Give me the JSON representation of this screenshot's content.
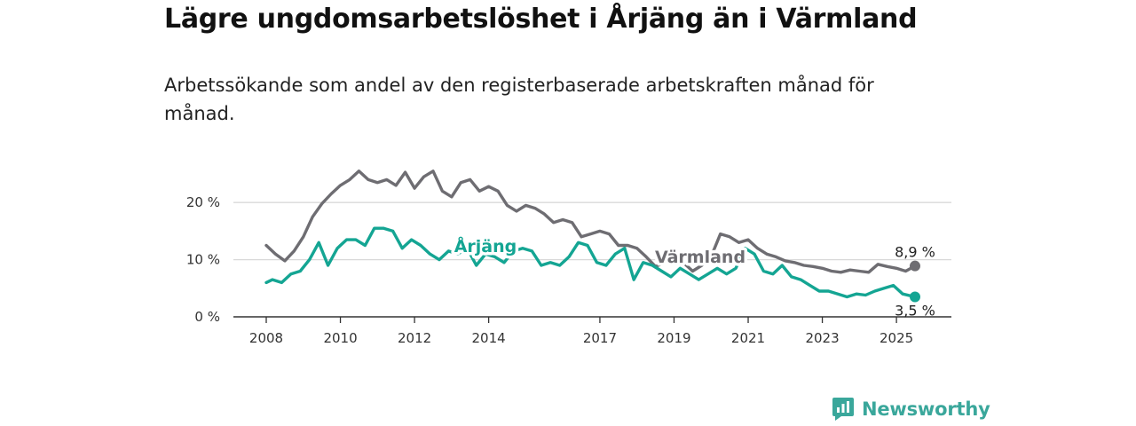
{
  "title": "Lägre ungdomsarbetslöshet i Årjäng än i Värmland",
  "subtitle": "Arbetssökande som andel av den registerbaserade arbetskraften månad för månad.",
  "brand": {
    "name": "Newsworthy",
    "icon": "newsworthy-logo-icon",
    "color": "#3aa79b"
  },
  "chart_data": {
    "type": "line",
    "x_ticks": [
      "2008",
      "2010",
      "2012",
      "2014",
      "2017",
      "2019",
      "2021",
      "2023",
      "2025"
    ],
    "y_ticks": [
      "0 %",
      "10 %",
      "20 %"
    ],
    "y_tick_values": [
      0,
      10,
      20
    ],
    "ylim": [
      0,
      25
    ],
    "grid": true,
    "series": [
      {
        "name": "Värmland",
        "color": "#6e6d72",
        "end_label": "8,9 %",
        "points": [
          [
            "2008-01",
            12.5
          ],
          [
            "2008-04",
            11.0
          ],
          [
            "2008-07",
            9.8
          ],
          [
            "2008-10",
            11.5
          ],
          [
            "2009-01",
            14.0
          ],
          [
            "2009-04",
            17.5
          ],
          [
            "2009-07",
            19.8
          ],
          [
            "2009-10",
            21.5
          ],
          [
            "2010-01",
            23.0
          ],
          [
            "2010-04",
            24.0
          ],
          [
            "2010-07",
            25.5
          ],
          [
            "2010-10",
            24.0
          ],
          [
            "2011-01",
            23.5
          ],
          [
            "2011-04",
            24.0
          ],
          [
            "2011-07",
            23.0
          ],
          [
            "2011-10",
            25.3
          ],
          [
            "2012-01",
            22.5
          ],
          [
            "2012-04",
            24.5
          ],
          [
            "2012-07",
            25.5
          ],
          [
            "2012-10",
            22.0
          ],
          [
            "2013-01",
            21.0
          ],
          [
            "2013-04",
            23.5
          ],
          [
            "2013-07",
            24.0
          ],
          [
            "2013-10",
            22.0
          ],
          [
            "2014-01",
            22.8
          ],
          [
            "2014-04",
            22.0
          ],
          [
            "2014-07",
            19.5
          ],
          [
            "2014-10",
            18.5
          ],
          [
            "2015-01",
            19.5
          ],
          [
            "2015-04",
            19.0
          ],
          [
            "2015-07",
            18.0
          ],
          [
            "2015-10",
            16.5
          ],
          [
            "2016-01",
            17.0
          ],
          [
            "2016-04",
            16.5
          ],
          [
            "2016-07",
            14.0
          ],
          [
            "2016-10",
            14.5
          ],
          [
            "2017-01",
            15.0
          ],
          [
            "2017-04",
            14.5
          ],
          [
            "2017-07",
            12.5
          ],
          [
            "2017-10",
            12.5
          ],
          [
            "2018-01",
            12.0
          ],
          [
            "2018-04",
            10.5
          ],
          [
            "2018-07",
            8.8
          ],
          [
            "2018-10",
            9.5
          ],
          [
            "2019-01",
            10.0
          ],
          [
            "2019-04",
            9.5
          ],
          [
            "2019-07",
            8.0
          ],
          [
            "2019-10",
            9.0
          ],
          [
            "2020-01",
            10.5
          ],
          [
            "2020-04",
            14.5
          ],
          [
            "2020-07",
            14.0
          ],
          [
            "2020-10",
            13.0
          ],
          [
            "2021-01",
            13.5
          ],
          [
            "2021-04",
            12.0
          ],
          [
            "2021-07",
            11.0
          ],
          [
            "2021-10",
            10.5
          ],
          [
            "2022-01",
            9.8
          ],
          [
            "2022-04",
            9.5
          ],
          [
            "2022-07",
            9.0
          ],
          [
            "2022-10",
            8.8
          ],
          [
            "2023-01",
            8.5
          ],
          [
            "2023-04",
            8.0
          ],
          [
            "2023-07",
            7.8
          ],
          [
            "2023-10",
            8.2
          ],
          [
            "2024-01",
            8.0
          ],
          [
            "2024-04",
            7.8
          ],
          [
            "2024-07",
            9.2
          ],
          [
            "2024-10",
            8.8
          ],
          [
            "2025-01",
            8.5
          ],
          [
            "2025-04",
            8.0
          ],
          [
            "2025-07",
            8.9
          ]
        ]
      },
      {
        "name": "Årjäng",
        "color": "#14a593",
        "end_label": "3,5 %",
        "points": [
          [
            "2008-01",
            6.0
          ],
          [
            "2008-03",
            6.5
          ],
          [
            "2008-06",
            6.0
          ],
          [
            "2008-09",
            7.5
          ],
          [
            "2008-12",
            8.0
          ],
          [
            "2009-03",
            10.0
          ],
          [
            "2009-06",
            13.0
          ],
          [
            "2009-09",
            9.0
          ],
          [
            "2009-12",
            12.0
          ],
          [
            "2010-03",
            13.5
          ],
          [
            "2010-06",
            13.5
          ],
          [
            "2010-09",
            12.5
          ],
          [
            "2010-12",
            15.5
          ],
          [
            "2011-03",
            15.5
          ],
          [
            "2011-06",
            15.0
          ],
          [
            "2011-09",
            12.0
          ],
          [
            "2011-12",
            13.5
          ],
          [
            "2012-03",
            12.5
          ],
          [
            "2012-06",
            11.0
          ],
          [
            "2012-09",
            10.0
          ],
          [
            "2012-12",
            11.5
          ],
          [
            "2013-03",
            11.0
          ],
          [
            "2013-06",
            12.0
          ],
          [
            "2013-09",
            9.0
          ],
          [
            "2013-12",
            11.0
          ],
          [
            "2014-03",
            10.5
          ],
          [
            "2014-06",
            9.5
          ],
          [
            "2014-09",
            11.5
          ],
          [
            "2014-12",
            12.0
          ],
          [
            "2015-03",
            11.5
          ],
          [
            "2015-06",
            9.0
          ],
          [
            "2015-09",
            9.5
          ],
          [
            "2015-12",
            9.0
          ],
          [
            "2016-03",
            10.5
          ],
          [
            "2016-06",
            13.0
          ],
          [
            "2016-09",
            12.5
          ],
          [
            "2016-12",
            9.5
          ],
          [
            "2017-03",
            9.0
          ],
          [
            "2017-06",
            11.0
          ],
          [
            "2017-09",
            12.0
          ],
          [
            "2017-12",
            6.5
          ],
          [
            "2018-03",
            9.5
          ],
          [
            "2018-06",
            9.0
          ],
          [
            "2018-09",
            8.0
          ],
          [
            "2018-12",
            7.0
          ],
          [
            "2019-03",
            8.5
          ],
          [
            "2019-06",
            7.5
          ],
          [
            "2019-09",
            6.5
          ],
          [
            "2019-12",
            7.5
          ],
          [
            "2020-03",
            8.5
          ],
          [
            "2020-06",
            7.5
          ],
          [
            "2020-09",
            8.5
          ],
          [
            "2020-12",
            12.0
          ],
          [
            "2021-03",
            11.0
          ],
          [
            "2021-06",
            8.0
          ],
          [
            "2021-09",
            7.5
          ],
          [
            "2021-12",
            9.0
          ],
          [
            "2022-03",
            7.0
          ],
          [
            "2022-06",
            6.5
          ],
          [
            "2022-09",
            5.5
          ],
          [
            "2022-12",
            4.5
          ],
          [
            "2023-03",
            4.5
          ],
          [
            "2023-06",
            4.0
          ],
          [
            "2023-09",
            3.5
          ],
          [
            "2023-12",
            4.0
          ],
          [
            "2024-03",
            3.8
          ],
          [
            "2024-06",
            4.5
          ],
          [
            "2024-09",
            5.0
          ],
          [
            "2024-12",
            5.5
          ],
          [
            "2025-03",
            4.0
          ],
          [
            "2025-07",
            3.5
          ]
        ]
      }
    ]
  }
}
